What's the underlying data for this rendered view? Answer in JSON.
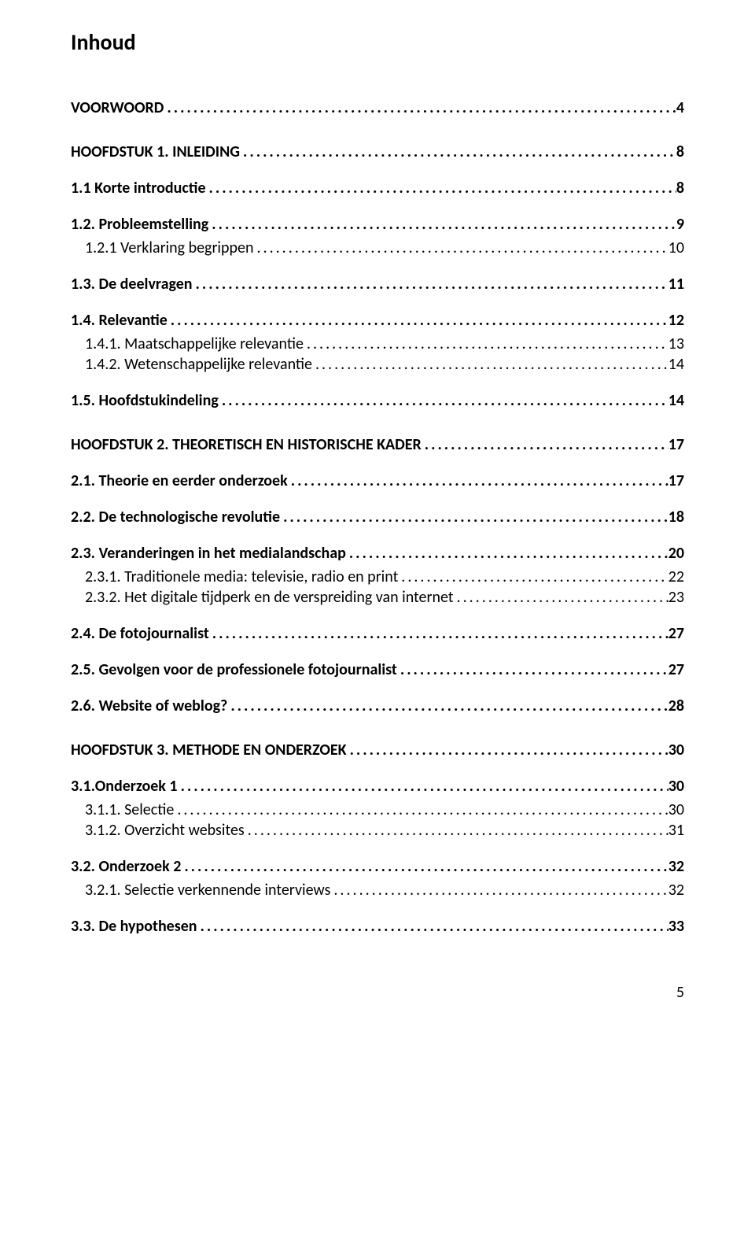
{
  "title": "Inhoud",
  "page_number": "5",
  "typography": {
    "title_fontsize_pt": 21,
    "entry_fontsize_pt": 15,
    "font_family": "Calibri",
    "text_color": "#000000",
    "background_color": "#ffffff"
  },
  "entries": [
    {
      "level": 0,
      "label": "VOORWOORD",
      "page": "4",
      "extra_class": "voorwoord"
    },
    {
      "level": 0,
      "label": "HOOFDSTUK 1. INLEIDING",
      "page": "8"
    },
    {
      "level": 1,
      "label": "1.1 Korte introductie",
      "page": "8"
    },
    {
      "level": 1,
      "label": "1.2. Probleemstelling",
      "page": "9"
    },
    {
      "level": 2,
      "label": "1.2.1 Verklaring begrippen",
      "page": "10"
    },
    {
      "level": 1,
      "label": "1.3. De deelvragen",
      "page": "11"
    },
    {
      "level": 1,
      "label": "1.4. Relevantie",
      "page": "12"
    },
    {
      "level": 2,
      "label": "1.4.1. Maatschappelijke relevantie",
      "page": "13"
    },
    {
      "level": 2,
      "label": "1.4.2. Wetenschappelijke relevantie",
      "page": "14"
    },
    {
      "level": 1,
      "label": "1.5. Hoofdstukindeling",
      "page": "14"
    },
    {
      "level": 0,
      "label": "HOOFDSTUK 2. THEORETISCH EN HISTORISCHE KADER",
      "page": "17"
    },
    {
      "level": 1,
      "label": "2.1. Theorie en eerder onderzoek",
      "page": "17"
    },
    {
      "level": 1,
      "label": "2.2. De technologische revolutie",
      "page": "18"
    },
    {
      "level": 1,
      "label": "2.3. Veranderingen in het medialandschap",
      "page": "20"
    },
    {
      "level": 2,
      "label": "2.3.1. Traditionele media: televisie, radio en print",
      "page": "22"
    },
    {
      "level": 2,
      "label": "2.3.2. Het digitale tijdperk en de verspreiding van internet",
      "page": "23"
    },
    {
      "level": 1,
      "label": "2.4. De fotojournalist",
      "page": "27"
    },
    {
      "level": 1,
      "label": "2.5. Gevolgen voor de professionele fotojournalist",
      "page": "27"
    },
    {
      "level": 1,
      "label": "2.6. Website of weblog?",
      "page": "28"
    },
    {
      "level": 0,
      "label": "HOOFDSTUK 3. METHODE EN ONDERZOEK",
      "page": "30"
    },
    {
      "level": 1,
      "label": "3.1.Onderzoek 1",
      "page": "30"
    },
    {
      "level": 2,
      "label": "3.1.1. Selectie",
      "page": "30"
    },
    {
      "level": 2,
      "label": "3.1.2. Overzicht websites",
      "page": "31"
    },
    {
      "level": 1,
      "label": "3.2. Onderzoek 2",
      "page": "32"
    },
    {
      "level": 2,
      "label": "3.2.1. Selectie verkennende interviews",
      "page": "32"
    },
    {
      "level": 1,
      "label": "3.3. De hypothesen",
      "page": "33"
    }
  ]
}
